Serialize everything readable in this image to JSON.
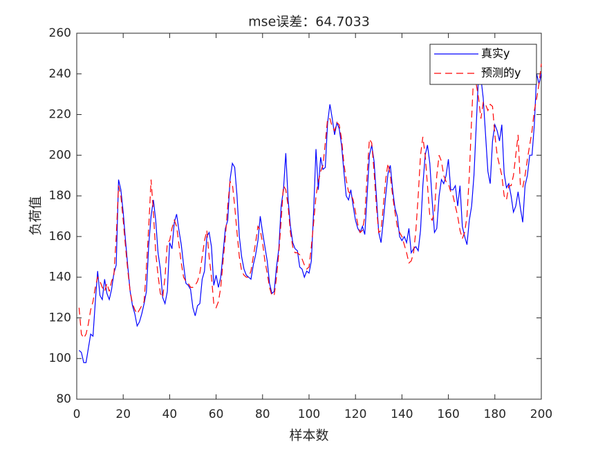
{
  "chart_data": {
    "type": "line",
    "title": "mse误差：64.7033",
    "xlabel": "样本数",
    "ylabel": "负荷值",
    "x": [
      1,
      2,
      3,
      4,
      5,
      6,
      7,
      8,
      9,
      10,
      11,
      12,
      13,
      14,
      15,
      16,
      17,
      18,
      19,
      20,
      21,
      22,
      23,
      24,
      25,
      26,
      27,
      28,
      29,
      30,
      31,
      32,
      33,
      34,
      35,
      36,
      37,
      38,
      39,
      40,
      41,
      42,
      43,
      44,
      45,
      46,
      47,
      48,
      49,
      50,
      51,
      52,
      53,
      54,
      55,
      56,
      57,
      58,
      59,
      60,
      61,
      62,
      63,
      64,
      65,
      66,
      67,
      68,
      69,
      70,
      71,
      72,
      73,
      74,
      75,
      76,
      77,
      78,
      79,
      80,
      81,
      82,
      83,
      84,
      85,
      86,
      87,
      88,
      89,
      90,
      91,
      92,
      93,
      94,
      95,
      96,
      97,
      98,
      99,
      100,
      101,
      102,
      103,
      104,
      105,
      106,
      107,
      108,
      109,
      110,
      111,
      112,
      113,
      114,
      115,
      116,
      117,
      118,
      119,
      120,
      121,
      122,
      123,
      124,
      125,
      126,
      127,
      128,
      129,
      130,
      131,
      132,
      133,
      134,
      135,
      136,
      137,
      138,
      139,
      140,
      141,
      142,
      143,
      144,
      145,
      146,
      147,
      148,
      149,
      150,
      151,
      152,
      153,
      154,
      155,
      156,
      157,
      158,
      159,
      160,
      161,
      162,
      163,
      164,
      165,
      166,
      167,
      168,
      169,
      170,
      171,
      172,
      173,
      174,
      175,
      176,
      177,
      178,
      179,
      180,
      181,
      182,
      183,
      184,
      185,
      186,
      187,
      188,
      189,
      190,
      191,
      192,
      193,
      194,
      195,
      196,
      197,
      198,
      199,
      200
    ],
    "series": [
      {
        "name": "真实y",
        "color": "#0000ff",
        "linestyle": "solid",
        "values": [
          104,
          103,
          98,
          98,
          105,
          112,
          111,
          128,
          143,
          131,
          129,
          139,
          132,
          129,
          134,
          142,
          146,
          188,
          183,
          172,
          158,
          145,
          133,
          126,
          122,
          116,
          118,
          122,
          127,
          133,
          156,
          170,
          178,
          168,
          152,
          144,
          130,
          127,
          133,
          157,
          154,
          167,
          171,
          163,
          156,
          146,
          137,
          136,
          134,
          125,
          121,
          126,
          127,
          139,
          143,
          160,
          162,
          155,
          136,
          141,
          135,
          140,
          152,
          164,
          168,
          188,
          196,
          194,
          180,
          160,
          150,
          144,
          141,
          140,
          139,
          146,
          151,
          158,
          170,
          162,
          155,
          148,
          137,
          132,
          133,
          145,
          154,
          175,
          183,
          201,
          178,
          165,
          157,
          154,
          153,
          145,
          144,
          140,
          143,
          142,
          148,
          173,
          203,
          183,
          199,
          193,
          194,
          216,
          225,
          218,
          210,
          216,
          213,
          205,
          192,
          180,
          178,
          183,
          175,
          168,
          164,
          162,
          165,
          161,
          180,
          200,
          205,
          197,
          180,
          162,
          157,
          168,
          180,
          191,
          195,
          183,
          174,
          170,
          160,
          158,
          160,
          157,
          164,
          152,
          154,
          155,
          153,
          163,
          185,
          200,
          205,
          196,
          178,
          162,
          164,
          180,
          188,
          186,
          190,
          198,
          183,
          183,
          185,
          175,
          185,
          165,
          160,
          156,
          168,
          175,
          190,
          215,
          240,
          238,
          228,
          210,
          192,
          186,
          207,
          215,
          212,
          207,
          215,
          191,
          184,
          186,
          180,
          172,
          175,
          182,
          174,
          167,
          185,
          190,
          200,
          200,
          215,
          240,
          235,
          240
        ]
      },
      {
        "name": "预测的y",
        "color": "#ff0000",
        "linestyle": "dashed",
        "values": [
          125,
          112,
          110,
          112,
          117,
          124,
          128,
          135,
          140,
          138,
          135,
          133,
          137,
          133,
          138,
          141,
          160,
          185,
          180,
          168,
          155,
          143,
          133,
          127,
          124,
          122,
          124,
          126,
          128,
          145,
          165,
          188,
          172,
          152,
          141,
          132,
          130,
          140,
          157,
          158,
          164,
          168,
          165,
          156,
          147,
          140,
          138,
          137,
          135,
          135,
          136,
          138,
          142,
          150,
          158,
          163,
          150,
          140,
          127,
          125,
          128,
          135,
          148,
          160,
          175,
          187,
          186,
          175,
          162,
          150,
          143,
          141,
          140,
          140,
          143,
          150,
          157,
          165,
          163,
          157,
          148,
          142,
          135,
          131,
          131,
          140,
          152,
          168,
          185,
          183,
          175,
          162,
          155,
          152,
          152,
          151,
          149,
          146,
          144,
          145,
          155,
          167,
          180,
          187,
          192,
          195,
          206,
          218,
          218,
          214,
          212,
          216,
          215,
          208,
          196,
          188,
          182,
          181,
          178,
          172,
          166,
          162,
          163,
          170,
          190,
          208,
          206,
          192,
          175,
          162,
          163,
          175,
          188,
          196,
          190,
          180,
          172,
          165,
          162,
          160,
          156,
          152,
          147,
          148,
          152,
          163,
          180,
          200,
          209,
          200,
          185,
          170,
          168,
          172,
          190,
          200,
          197,
          190,
          187,
          186,
          182,
          180,
          175,
          170,
          163,
          159,
          162,
          170,
          190,
          218,
          243,
          235,
          228,
          218,
          226,
          225,
          222,
          225,
          224,
          210,
          200,
          195,
          190,
          180,
          178,
          185,
          185,
          190,
          200,
          210,
          185,
          184,
          190,
          198,
          205,
          212,
          222,
          228,
          235,
          245
        ]
      }
    ],
    "xlim": [
      0,
      200
    ],
    "xticks": [
      0,
      20,
      40,
      60,
      80,
      100,
      120,
      140,
      160,
      180,
      200
    ],
    "ylim": [
      80,
      260
    ],
    "yticks": [
      80,
      100,
      120,
      140,
      160,
      180,
      200,
      220,
      240,
      260
    ],
    "legend": "northeast"
  }
}
